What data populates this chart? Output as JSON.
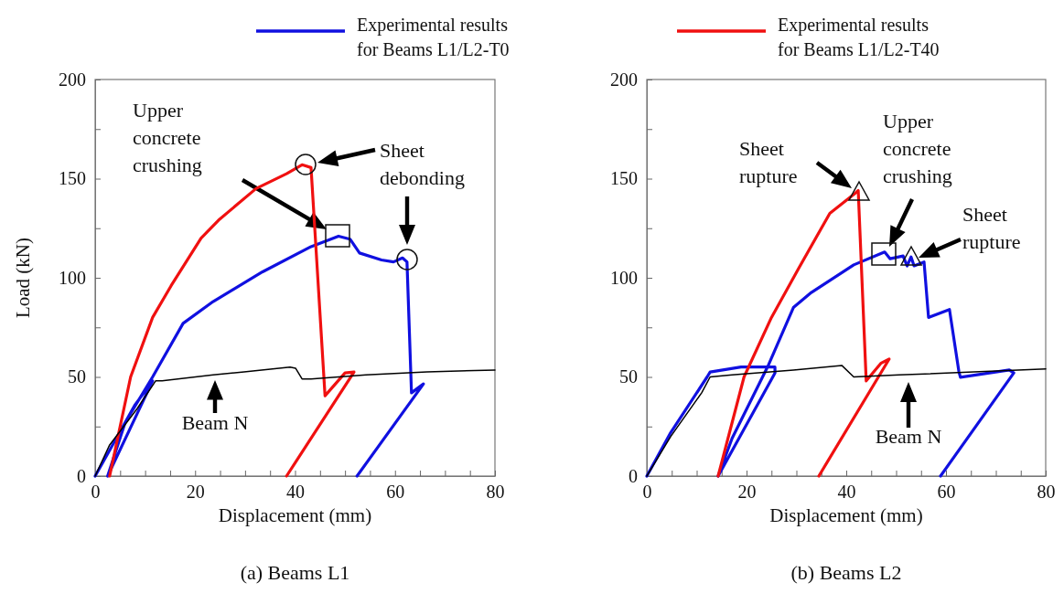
{
  "chart_data": [
    {
      "type": "line",
      "title": "(a) Beams L1",
      "xlabel": "Displacement (mm)",
      "ylabel": "Load (kN)",
      "legend": "top",
      "xlim": [
        0,
        80
      ],
      "xticks": [
        0,
        {
          "value": 5,
          "label": null
        },
        {
          "value": 10,
          "label": null
        },
        {
          "value": 15,
          "label": null
        },
        20,
        {
          "value": 25,
          "label": null
        },
        {
          "value": 30,
          "label": null
        },
        {
          "value": 35,
          "label": null
        },
        40,
        {
          "value": 45,
          "label": null
        },
        {
          "value": 50,
          "label": null
        },
        {
          "value": 55,
          "label": null
        },
        60,
        {
          "value": 65,
          "label": null
        },
        {
          "value": 70,
          "label": null
        },
        {
          "value": 75,
          "label": null
        },
        80
      ],
      "ylim": [
        0,
        200
      ],
      "yticks": [
        0,
        {
          "value": 25,
          "label": null
        },
        50,
        {
          "value": 75,
          "label": null
        },
        100,
        {
          "value": 125,
          "label": null
        },
        150,
        {
          "value": 175,
          "label": null
        },
        200
      ],
      "series": [
        {
          "name": "Experimental results for Beams L1/L2-T0",
          "color": "#1010e0",
          "x": [
            0,
            4,
            8,
            11.5,
            2.5,
            6,
            11.5,
            17.6,
            23.6,
            33.5,
            43.2,
            48.7,
            51,
            52.9,
            57.3,
            59.7,
            61.5,
            62.4,
            63.3,
            65.7,
            52.4
          ],
          "values": [
            0,
            18,
            36,
            48,
            0,
            27,
            50,
            77,
            88,
            103,
            115.7,
            121,
            119.5,
            112.5,
            109,
            108,
            110,
            108,
            42,
            46.5,
            0
          ]
        },
        {
          "name": "Experimental results for Beams L1/L2-T40",
          "color": "#f01010",
          "x": [
            2.9,
            7.1,
            11.5,
            15.2,
            21.2,
            24.9,
            32.2,
            38.3,
            41.4,
            43.2,
            46,
            50,
            51.8,
            38.3
          ],
          "values": [
            0,
            50,
            80,
            96,
            120,
            129.5,
            145,
            152.5,
            157,
            155.6,
            40.5,
            52,
            52.5,
            0
          ]
        },
        {
          "color": "#000000",
          "x": [
            0,
            2.9,
            8.4,
            12.1,
            13.4,
            23.6,
            29.8,
            39,
            40.1,
            41.4,
            43.2,
            54.2,
            66.4,
            80
          ],
          "values": [
            0,
            15.7,
            34,
            48,
            48,
            51,
            52.5,
            55,
            54.4,
            49,
            49,
            51,
            52.5,
            53.5
          ]
        }
      ],
      "annotations": [
        "Upper concrete crushing",
        "Sheet debonding",
        "Beam N"
      ]
    },
    {
      "type": "line",
      "title": "(b) Beams L2",
      "xlabel": "Displacement (mm)",
      "xlim": [
        0,
        80
      ],
      "xticks": [
        0,
        {
          "value": 5,
          "label": null
        },
        {
          "value": 10,
          "label": null
        },
        {
          "value": 15,
          "label": null
        },
        20,
        {
          "value": 25,
          "label": null
        },
        {
          "value": 30,
          "label": null
        },
        {
          "value": 35,
          "label": null
        },
        40,
        {
          "value": 45,
          "label": null
        },
        {
          "value": 50,
          "label": null
        },
        {
          "value": 55,
          "label": null
        },
        60,
        {
          "value": 65,
          "label": null
        },
        {
          "value": 70,
          "label": null
        },
        {
          "value": 75,
          "label": null
        },
        80
      ],
      "ylim": [
        0,
        200
      ],
      "yticks": [
        0,
        {
          "value": 25,
          "label": null
        },
        50,
        {
          "value": 75,
          "label": null
        },
        100,
        {
          "value": 125,
          "label": null
        },
        150,
        {
          "value": 175,
          "label": null
        },
        200
      ],
      "series": [
        {
          "color": "#1010e0",
          "x": [
            0,
            4.8,
            12.1,
            12.7,
            18.9,
            25.7,
            25.7,
            14.3,
            17.1,
            24.4,
            29.4,
            33,
            41.5,
            47.7,
            48.8,
            51.4,
            52.2,
            53,
            53.6,
            55.6,
            56.5,
            60.7,
            62.6,
            62.9,
            72.7,
            73.6,
            58.9
          ],
          "values": [
            0,
            22,
            50,
            52.5,
            55,
            55,
            52,
            0,
            19,
            56,
            85,
            92.6,
            106.5,
            113,
            109.6,
            111,
            106,
            110.5,
            106,
            108,
            80,
            84,
            52.5,
            49.8,
            53.5,
            52,
            0
          ]
        },
        {
          "color": "#f01010",
          "x": [
            14.3,
            19.5,
            25,
            30.5,
            36.7,
            41.5,
            42.4,
            44,
            47,
            48.6,
            34.5
          ],
          "values": [
            0,
            50,
            80,
            105,
            132.5,
            142,
            144,
            48,
            57,
            59,
            0
          ]
        },
        {
          "color": "#000000",
          "x": [
            0,
            4.8,
            11,
            12.7,
            17.1,
            29.4,
            39.1,
            41.5,
            50.6,
            80
          ],
          "values": [
            0,
            20,
            42,
            50,
            51,
            53.5,
            55.8,
            50,
            51,
            54
          ]
        }
      ],
      "annotations": [
        "Sheet rupture",
        "Upper concrete crushing",
        "Sheet rupture",
        "Beam N"
      ]
    }
  ]
}
